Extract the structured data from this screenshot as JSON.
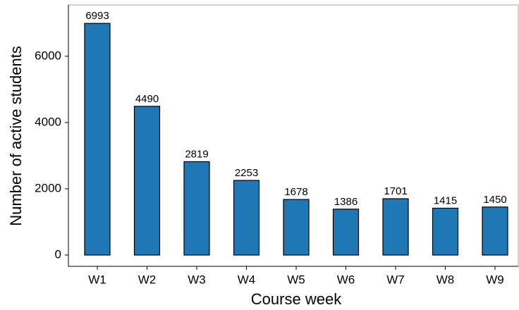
{
  "chart_data": {
    "type": "bar",
    "x_label": "Course week",
    "y_label": "Number of active students",
    "categories": [
      "W1",
      "W2",
      "W3",
      "W4",
      "W5",
      "W6",
      "W7",
      "W8",
      "W9"
    ],
    "values": [
      6993,
      4490,
      2819,
      2253,
      1678,
      1386,
      1701,
      1415,
      1450
    ],
    "color": "#1f78b4",
    "ylim": [
      -340,
      7550
    ],
    "yticks": [
      0,
      2000,
      4000,
      6000
    ],
    "grid": false
  }
}
